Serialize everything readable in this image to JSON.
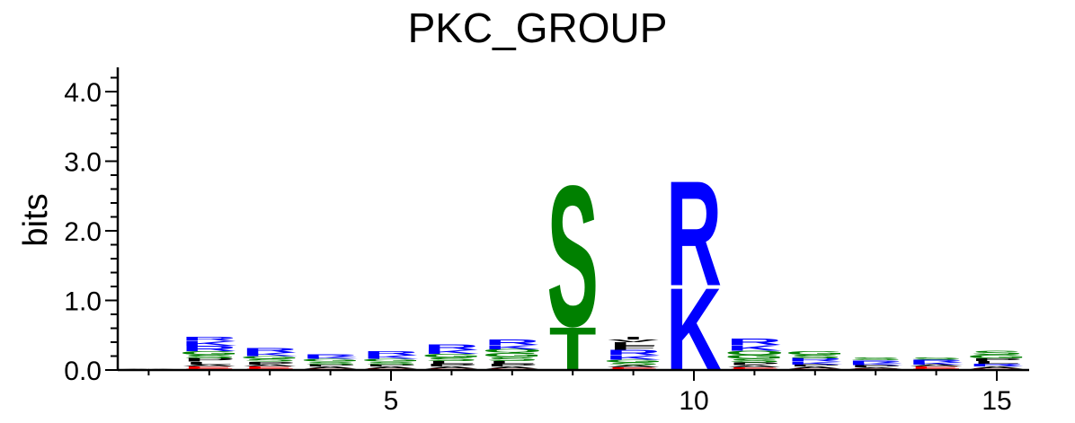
{
  "chart_data": {
    "type": "sequence-logo",
    "title": "PKC_GROUP",
    "ylabel": "bits",
    "ylim": [
      0,
      4.3
    ],
    "yticks_major": [
      "0.0",
      "1.0",
      "2.0",
      "3.0",
      "4.0"
    ],
    "yticks_major_values": [
      0,
      1,
      2,
      3,
      4
    ],
    "xticks": [
      "5",
      "10",
      "15"
    ],
    "xticks_values": [
      5,
      10,
      15
    ],
    "xlim": [
      0.5,
      15.6
    ],
    "colors": {
      "R": "#0000ff",
      "K": "#0000ff",
      "H": "#0000ff",
      "S": "#008000",
      "T": "#008000",
      "G": "#008000",
      "Y": "#008000",
      "C": "#008000",
      "Q": "#008000",
      "N": "#008000",
      "D": "#ff0000",
      "E": "#ff0000",
      "L": "#000000",
      "A": "#000000",
      "P": "#000000",
      "V": "#000000",
      "I": "#000000",
      "M": "#000000",
      "F": "#000000",
      "W": "#000000"
    },
    "positions": [
      {
        "pos": 1,
        "letters": [
          {
            "l": "L",
            "h": 0.01
          },
          {
            "l": "A",
            "h": 0.01
          }
        ]
      },
      {
        "pos": 2,
        "letters": [
          {
            "l": "D",
            "h": 0.02
          },
          {
            "l": "E",
            "h": 0.03
          },
          {
            "l": "A",
            "h": 0.03
          },
          {
            "l": "L",
            "h": 0.04
          },
          {
            "l": "P",
            "h": 0.05
          },
          {
            "l": "S",
            "h": 0.05
          },
          {
            "l": "G",
            "h": 0.05
          },
          {
            "l": "R",
            "h": 0.08
          },
          {
            "l": "K",
            "h": 0.07
          },
          {
            "l": "R",
            "h": 0.06
          }
        ]
      },
      {
        "pos": 3,
        "letters": [
          {
            "l": "D",
            "h": 0.02
          },
          {
            "l": "E",
            "h": 0.03
          },
          {
            "l": "A",
            "h": 0.03
          },
          {
            "l": "P",
            "h": 0.04
          },
          {
            "l": "S",
            "h": 0.04
          },
          {
            "l": "G",
            "h": 0.04
          },
          {
            "l": "K",
            "h": 0.05
          },
          {
            "l": "R",
            "h": 0.07
          }
        ]
      },
      {
        "pos": 4,
        "letters": [
          {
            "l": "E",
            "h": 0.02
          },
          {
            "l": "A",
            "h": 0.03
          },
          {
            "l": "P",
            "h": 0.03
          },
          {
            "l": "S",
            "h": 0.04
          },
          {
            "l": "G",
            "h": 0.04
          },
          {
            "l": "K",
            "h": 0.03
          },
          {
            "l": "R",
            "h": 0.04
          }
        ]
      },
      {
        "pos": 5,
        "letters": [
          {
            "l": "D",
            "h": 0.02
          },
          {
            "l": "A",
            "h": 0.03
          },
          {
            "l": "P",
            "h": 0.03
          },
          {
            "l": "S",
            "h": 0.04
          },
          {
            "l": "G",
            "h": 0.04
          },
          {
            "l": "K",
            "h": 0.05
          },
          {
            "l": "R",
            "h": 0.06
          }
        ]
      },
      {
        "pos": 6,
        "letters": [
          {
            "l": "E",
            "h": 0.02
          },
          {
            "l": "A",
            "h": 0.03
          },
          {
            "l": "P",
            "h": 0.04
          },
          {
            "l": "L",
            "h": 0.04
          },
          {
            "l": "S",
            "h": 0.05
          },
          {
            "l": "G",
            "h": 0.05
          },
          {
            "l": "K",
            "h": 0.06
          },
          {
            "l": "R",
            "h": 0.08
          }
        ]
      },
      {
        "pos": 7,
        "letters": [
          {
            "l": "E",
            "h": 0.02
          },
          {
            "l": "A",
            "h": 0.03
          },
          {
            "l": "P",
            "h": 0.04
          },
          {
            "l": "L",
            "h": 0.04
          },
          {
            "l": "S",
            "h": 0.06
          },
          {
            "l": "G",
            "h": 0.06
          },
          {
            "l": "Q",
            "h": 0.05
          },
          {
            "l": "K",
            "h": 0.06
          },
          {
            "l": "R",
            "h": 0.08
          }
        ]
      },
      {
        "pos": 8,
        "letters": [
          {
            "l": "T",
            "h": 0.64
          },
          {
            "l": "S",
            "h": 2.08
          }
        ]
      },
      {
        "pos": 9,
        "letters": [
          {
            "l": "D",
            "h": 0.02
          },
          {
            "l": "E",
            "h": 0.02
          },
          {
            "l": "A",
            "h": 0.03
          },
          {
            "l": "S",
            "h": 0.04
          },
          {
            "l": "G",
            "h": 0.04
          },
          {
            "l": "K",
            "h": 0.06
          },
          {
            "l": "R",
            "h": 0.08
          },
          {
            "l": "F",
            "h": 0.06
          },
          {
            "l": "L",
            "h": 0.05
          },
          {
            "l": "V",
            "h": 0.04
          },
          {
            "l": "I",
            "h": 0.04
          }
        ]
      },
      {
        "pos": 10,
        "letters": [
          {
            "l": "K",
            "h": 1.22
          },
          {
            "l": "R",
            "h": 1.55
          }
        ]
      },
      {
        "pos": 11,
        "letters": [
          {
            "l": "D",
            "h": 0.02
          },
          {
            "l": "E",
            "h": 0.02
          },
          {
            "l": "A",
            "h": 0.03
          },
          {
            "l": "P",
            "h": 0.04
          },
          {
            "l": "S",
            "h": 0.05
          },
          {
            "l": "G",
            "h": 0.06
          },
          {
            "l": "Q",
            "h": 0.06
          },
          {
            "l": "K",
            "h": 0.08
          },
          {
            "l": "R",
            "h": 0.09
          }
        ]
      },
      {
        "pos": 12,
        "letters": [
          {
            "l": "E",
            "h": 0.02
          },
          {
            "l": "A",
            "h": 0.03
          },
          {
            "l": "P",
            "h": 0.03
          },
          {
            "l": "K",
            "h": 0.04
          },
          {
            "l": "R",
            "h": 0.05
          },
          {
            "l": "S",
            "h": 0.05
          },
          {
            "l": "G",
            "h": 0.05
          }
        ]
      },
      {
        "pos": 13,
        "letters": [
          {
            "l": "E",
            "h": 0.02
          },
          {
            "l": "A",
            "h": 0.02
          },
          {
            "l": "P",
            "h": 0.03
          },
          {
            "l": "K",
            "h": 0.03
          },
          {
            "l": "R",
            "h": 0.04
          },
          {
            "l": "S",
            "h": 0.04
          }
        ]
      },
      {
        "pos": 14,
        "letters": [
          {
            "l": "D",
            "h": 0.02
          },
          {
            "l": "E",
            "h": 0.03
          },
          {
            "l": "A",
            "h": 0.03
          },
          {
            "l": "K",
            "h": 0.03
          },
          {
            "l": "R",
            "h": 0.04
          },
          {
            "l": "S",
            "h": 0.03
          }
        ]
      },
      {
        "pos": 15,
        "letters": [
          {
            "l": "D",
            "h": 0.02
          },
          {
            "l": "A",
            "h": 0.03
          },
          {
            "l": "R",
            "h": 0.04
          },
          {
            "l": "L",
            "h": 0.04
          },
          {
            "l": "P",
            "h": 0.04
          },
          {
            "l": "G",
            "h": 0.05
          },
          {
            "l": "S",
            "h": 0.06
          }
        ]
      }
    ]
  }
}
